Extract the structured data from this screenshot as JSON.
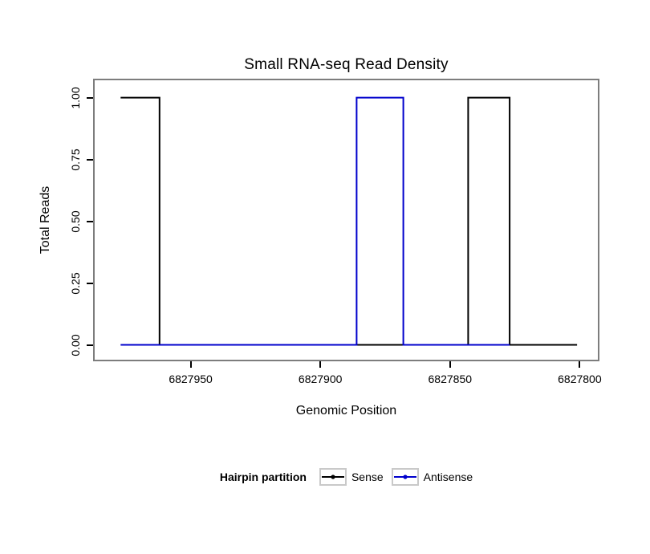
{
  "chart_data": {
    "type": "line",
    "title": "Small RNA-seq Read Density",
    "xlabel": "Genomic Position",
    "ylabel": "Total Reads",
    "x_axis_reversed": true,
    "grid": false,
    "x_domain": [
      6827987,
      6827793
    ],
    "y_domain": [
      -0.06,
      1.07
    ],
    "x_ticks": [
      {
        "value": 6827950,
        "label": "6827950"
      },
      {
        "value": 6827900,
        "label": "6827900"
      },
      {
        "value": 6827850,
        "label": "6827850"
      },
      {
        "value": 6827800,
        "label": "6827800"
      }
    ],
    "y_ticks": [
      {
        "value": 0.0,
        "label": "0.00"
      },
      {
        "value": 0.25,
        "label": "0.25"
      },
      {
        "value": 0.5,
        "label": "0.50"
      },
      {
        "value": 0.75,
        "label": "0.75"
      },
      {
        "value": 1.0,
        "label": "1.00"
      }
    ],
    "legend": {
      "title": "Hairpin partition",
      "position": "bottom",
      "entries": [
        {
          "label": "Sense",
          "color": "#000000"
        },
        {
          "label": "Antisense",
          "color": "#0000CC"
        }
      ]
    },
    "series": [
      {
        "name": "Sense",
        "color": "#000000",
        "points": [
          [
            6827977,
            1
          ],
          [
            6827962,
            1
          ],
          [
            6827962,
            0
          ],
          [
            6827843,
            0
          ],
          [
            6827843,
            1
          ],
          [
            6827827,
            1
          ],
          [
            6827827,
            0
          ],
          [
            6827801,
            0
          ]
        ]
      },
      {
        "name": "Antisense",
        "color": "#0000CC",
        "points": [
          [
            6827977,
            0
          ],
          [
            6827886,
            0
          ],
          [
            6827886,
            1
          ],
          [
            6827868,
            1
          ],
          [
            6827868,
            0
          ],
          [
            6827827,
            0
          ]
        ]
      }
    ]
  },
  "colors": {
    "panel_border": "#7d7d7d",
    "tick": "#000000",
    "legend_key_border": "#c9c9c9",
    "background": "#ffffff"
  }
}
